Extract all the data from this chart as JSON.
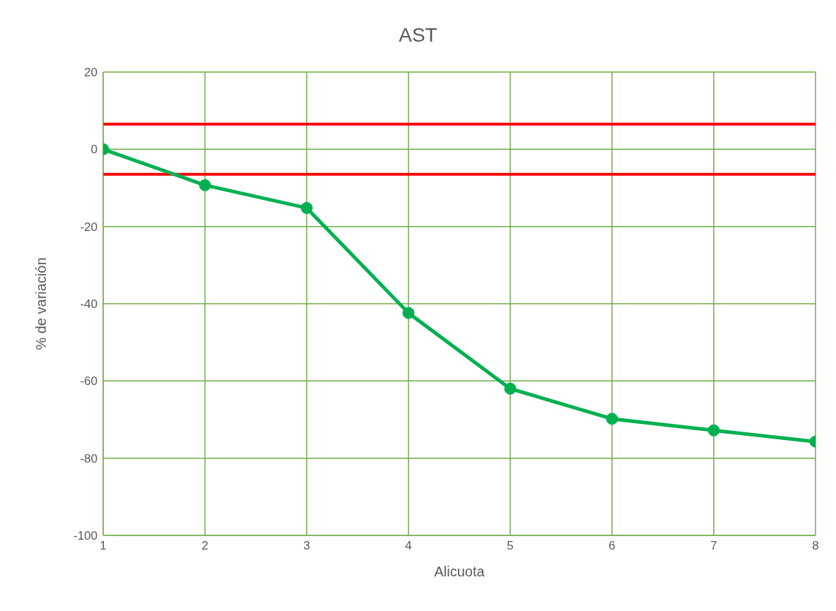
{
  "chart_data": {
    "type": "line",
    "title": "AST",
    "xlabel": "Alicuota",
    "ylabel": "% de variación",
    "x": [
      1,
      2,
      3,
      4,
      5,
      6,
      7,
      8
    ],
    "series": [
      {
        "color": "#00b050",
        "values": [
          0,
          -9.3,
          -15.2,
          -42.4,
          -62.0,
          -69.8,
          -72.8,
          -75.7
        ]
      }
    ],
    "xlim": [
      1,
      8
    ],
    "xticks": [
      1,
      2,
      3,
      4,
      5,
      6,
      7,
      8
    ],
    "ylim": [
      -100,
      20
    ],
    "yticks": [
      -100,
      -80,
      -60,
      -40,
      -20,
      0,
      20
    ],
    "ref_lines": [
      {
        "axis": "y",
        "value": 6.5,
        "color": "#ff0000"
      },
      {
        "axis": "y",
        "value": -6.5,
        "color": "#ff0000"
      }
    ],
    "grid": true,
    "marker": "circle",
    "line_style": "solid",
    "legend": false
  }
}
